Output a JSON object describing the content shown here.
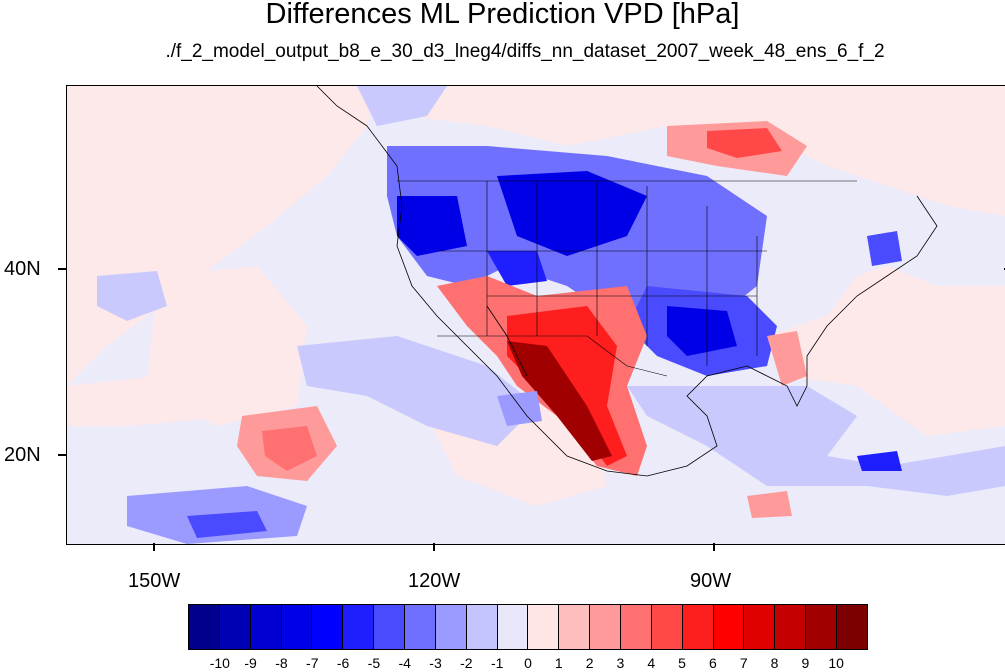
{
  "header": {
    "title": "Differences ML Prediction VPD [hPa]",
    "subtitle": "./f_2_model_output_b8_e_30_d3_lneg4/diffs_nn_dataset_2007_week_48_ens_6_f_2"
  },
  "map": {
    "lat_labels": [
      "40N",
      "20N"
    ],
    "lon_labels": [
      "150W",
      "120W",
      "90W"
    ]
  },
  "colorbar": {
    "labels": [
      "-10",
      "-9",
      "-8",
      "-7",
      "-6",
      "-5",
      "-4",
      "-3",
      "-2",
      "-1",
      "0",
      "1",
      "2",
      "3",
      "4",
      "5",
      "6",
      "7",
      "8",
      "9",
      "10"
    ],
    "colors": [
      "#00008c",
      "#0000b4",
      "#0000d2",
      "#0000e6",
      "#0000ff",
      "#1e1eff",
      "#4a4aff",
      "#7070ff",
      "#9a9aff",
      "#c4c4ff",
      "#e8e8fa",
      "#ffe6e6",
      "#ffbebe",
      "#ff9a9a",
      "#ff7070",
      "#ff4848",
      "#ff1e1e",
      "#ff0000",
      "#e00000",
      "#c40000",
      "#a00000",
      "#7c0000"
    ],
    "neutral_negative": "#e8e8fa",
    "neutral_positive": "#ffe6e6"
  }
}
